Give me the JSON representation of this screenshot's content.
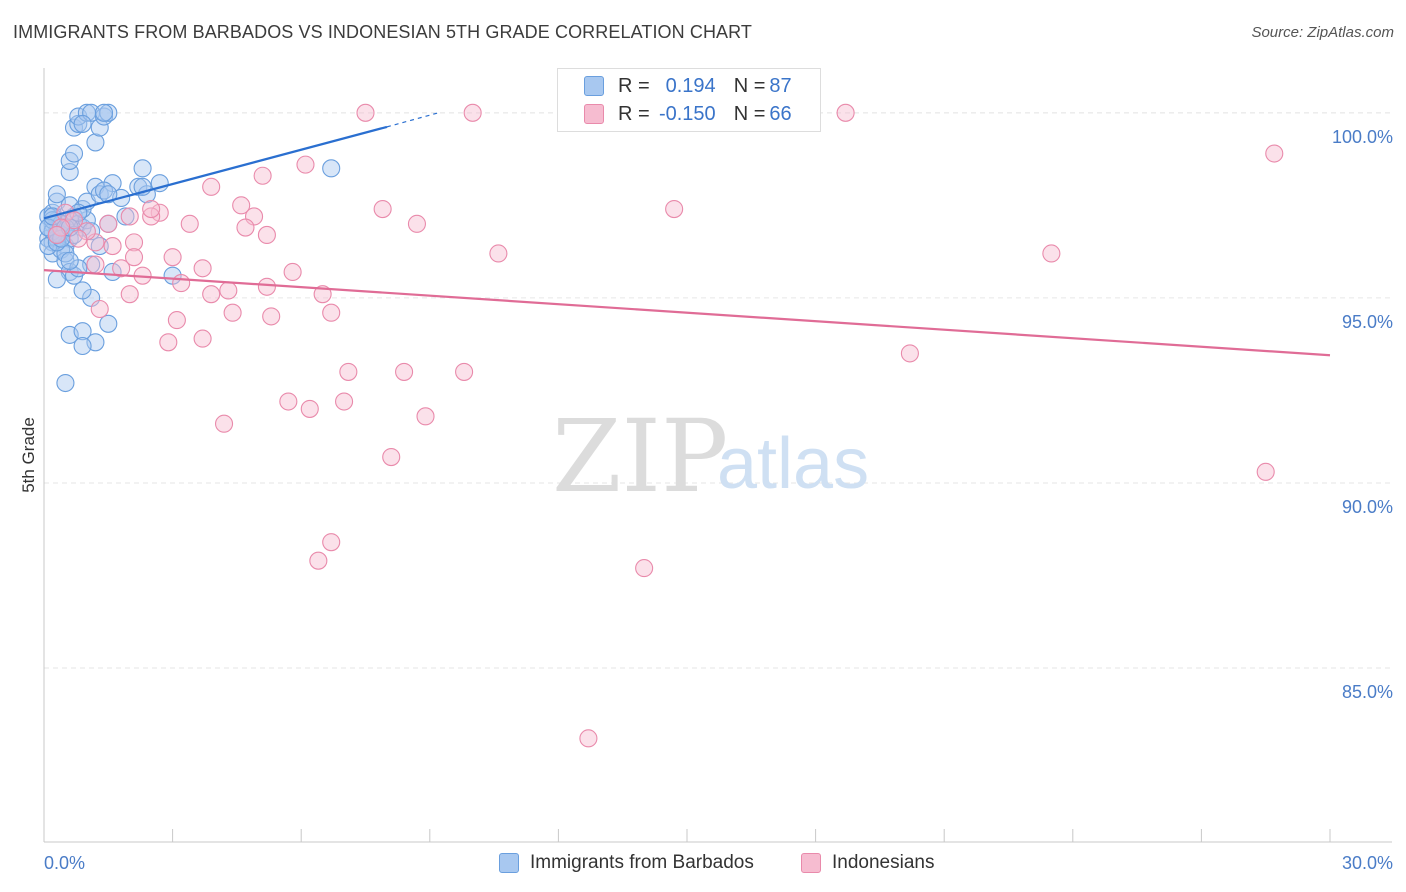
{
  "title": "IMMIGRANTS FROM BARBADOS VS INDONESIAN 5TH GRADE CORRELATION CHART",
  "source": "Source: ZipAtlas.com",
  "watermark": {
    "zip": "ZIP",
    "atlas": "atlas"
  },
  "legend": {
    "r_label": "R = ",
    "n_label": "N = ",
    "rows": [
      {
        "r": "0.194",
        "n": "87",
        "color": "#a8c8f0",
        "border": "#6a9fde"
      },
      {
        "r": "-0.150",
        "n": "66",
        "color": "#f6bcd0",
        "border": "#e98aab"
      }
    ]
  },
  "bottom_legend": [
    "Immigrants from Barbados",
    "Indonesians"
  ],
  "chart_data": {
    "type": "scatter",
    "title": "IMMIGRANTS FROM BARBADOS VS INDONESIAN 5TH GRADE CORRELATION CHART",
    "xlabel": "",
    "ylabel": "5th Grade",
    "xlim": [
      0,
      30
    ],
    "ylim": [
      80.3,
      100.9
    ],
    "x_tick_labels": [
      "0.0%",
      "30.0%"
    ],
    "y_ticks": [
      85,
      90,
      95,
      100
    ],
    "y_tick_labels": [
      "85.0%",
      "90.0%",
      "95.0%",
      "100.0%"
    ],
    "grid": true,
    "series": [
      {
        "name": "Immigrants from Barbados",
        "color": "#6a9fde",
        "fill": "#a8c8f0",
        "line_color": "#2a6fd0",
        "trend": {
          "x": [
            0,
            8.0
          ],
          "y": [
            97.15,
            99.62
          ],
          "dashed_to": [
            9.2,
            100.0
          ]
        },
        "points": [
          [
            0.1,
            97.2
          ],
          [
            0.2,
            97.0
          ],
          [
            0.1,
            96.6
          ],
          [
            0.3,
            96.8
          ],
          [
            0.2,
            96.5
          ],
          [
            0.4,
            96.8
          ],
          [
            0.3,
            97.1
          ],
          [
            0.1,
            96.9
          ],
          [
            0.5,
            97.0
          ],
          [
            0.4,
            96.7
          ],
          [
            0.2,
            97.3
          ],
          [
            0.6,
            97.1
          ],
          [
            0.3,
            96.6
          ],
          [
            0.5,
            96.4
          ],
          [
            0.2,
            96.2
          ],
          [
            0.7,
            97.2
          ],
          [
            0.8,
            97.0
          ],
          [
            0.9,
            96.9
          ],
          [
            1.0,
            97.1
          ],
          [
            0.6,
            96.6
          ],
          [
            0.4,
            96.3
          ],
          [
            0.3,
            97.6
          ],
          [
            0.3,
            97.8
          ],
          [
            0.6,
            97.5
          ],
          [
            0.9,
            97.4
          ],
          [
            1.0,
            97.6
          ],
          [
            1.2,
            98.0
          ],
          [
            1.3,
            97.8
          ],
          [
            1.6,
            98.1
          ],
          [
            1.4,
            97.9
          ],
          [
            2.2,
            98.0
          ],
          [
            2.4,
            97.8
          ],
          [
            2.7,
            98.1
          ],
          [
            2.3,
            98.5
          ],
          [
            0.6,
            98.4
          ],
          [
            0.6,
            98.7
          ],
          [
            0.7,
            98.9
          ],
          [
            1.2,
            99.2
          ],
          [
            0.7,
            99.6
          ],
          [
            0.8,
            99.7
          ],
          [
            1.3,
            99.6
          ],
          [
            0.8,
            99.9
          ],
          [
            1.0,
            100.0
          ],
          [
            1.1,
            100.0
          ],
          [
            1.4,
            99.9
          ],
          [
            1.5,
            100.0
          ],
          [
            1.4,
            100.0
          ],
          [
            0.9,
            99.7
          ],
          [
            1.9,
            97.2
          ],
          [
            1.5,
            97.0
          ],
          [
            1.1,
            96.8
          ],
          [
            0.5,
            96.0
          ],
          [
            0.6,
            95.7
          ],
          [
            0.7,
            95.6
          ],
          [
            0.3,
            95.5
          ],
          [
            1.1,
            95.9
          ],
          [
            0.8,
            95.8
          ],
          [
            1.3,
            96.4
          ],
          [
            1.6,
            95.7
          ],
          [
            3.0,
            95.6
          ],
          [
            0.5,
            96.2
          ],
          [
            0.6,
            96.0
          ],
          [
            1.1,
            95.0
          ],
          [
            0.9,
            95.2
          ],
          [
            0.6,
            94.0
          ],
          [
            0.9,
            94.1
          ],
          [
            1.2,
            93.8
          ],
          [
            1.5,
            94.3
          ],
          [
            0.9,
            93.7
          ],
          [
            0.5,
            92.7
          ],
          [
            6.7,
            98.5
          ],
          [
            2.3,
            98.0
          ],
          [
            1.8,
            97.7
          ],
          [
            1.5,
            97.8
          ],
          [
            0.2,
            96.8
          ],
          [
            0.4,
            97.0
          ],
          [
            0.1,
            96.4
          ],
          [
            0.3,
            96.5
          ],
          [
            0.2,
            97.1
          ],
          [
            0.5,
            96.9
          ],
          [
            0.7,
            96.7
          ],
          [
            0.4,
            96.6
          ],
          [
            0.1,
            96.9
          ],
          [
            0.3,
            96.7
          ],
          [
            0.2,
            97.2
          ],
          [
            0.6,
            96.9
          ],
          [
            0.8,
            97.3
          ]
        ]
      },
      {
        "name": "Indonesians",
        "color": "#e98aab",
        "fill": "#f6bcd0",
        "line_color": "#e06c96",
        "trend": {
          "x": [
            0,
            30.0
          ],
          "y": [
            95.75,
            93.45
          ]
        },
        "points": [
          [
            7.5,
            100.0
          ],
          [
            10.0,
            100.0
          ],
          [
            18.7,
            100.0
          ],
          [
            28.7,
            98.9
          ],
          [
            6.1,
            98.6
          ],
          [
            5.1,
            98.3
          ],
          [
            3.9,
            98.0
          ],
          [
            7.9,
            97.4
          ],
          [
            14.7,
            97.4
          ],
          [
            4.6,
            97.5
          ],
          [
            4.9,
            97.2
          ],
          [
            2.7,
            97.3
          ],
          [
            2.5,
            97.2
          ],
          [
            3.4,
            97.0
          ],
          [
            4.7,
            96.9
          ],
          [
            5.2,
            96.7
          ],
          [
            8.7,
            97.0
          ],
          [
            2.0,
            97.2
          ],
          [
            2.1,
            96.5
          ],
          [
            1.2,
            96.5
          ],
          [
            1.6,
            96.4
          ],
          [
            10.6,
            96.2
          ],
          [
            23.5,
            96.2
          ],
          [
            2.1,
            96.1
          ],
          [
            3.0,
            96.1
          ],
          [
            1.8,
            95.8
          ],
          [
            3.7,
            95.8
          ],
          [
            5.8,
            95.7
          ],
          [
            2.3,
            95.6
          ],
          [
            1.2,
            95.9
          ],
          [
            3.2,
            95.4
          ],
          [
            5.2,
            95.3
          ],
          [
            3.9,
            95.1
          ],
          [
            4.3,
            95.2
          ],
          [
            6.5,
            95.1
          ],
          [
            2.0,
            95.1
          ],
          [
            4.4,
            94.6
          ],
          [
            6.7,
            94.6
          ],
          [
            5.3,
            94.5
          ],
          [
            1.3,
            94.7
          ],
          [
            3.1,
            94.4
          ],
          [
            3.7,
            93.9
          ],
          [
            2.9,
            93.8
          ],
          [
            20.2,
            93.5
          ],
          [
            7.1,
            93.0
          ],
          [
            8.4,
            93.0
          ],
          [
            9.8,
            93.0
          ],
          [
            5.7,
            92.2
          ],
          [
            7.0,
            92.2
          ],
          [
            6.2,
            92.0
          ],
          [
            8.9,
            91.8
          ],
          [
            4.2,
            91.6
          ],
          [
            8.1,
            90.7
          ],
          [
            28.5,
            90.3
          ],
          [
            6.7,
            88.4
          ],
          [
            6.4,
            87.9
          ],
          [
            14.0,
            87.7
          ],
          [
            12.7,
            83.1
          ],
          [
            0.5,
            97.3
          ],
          [
            0.7,
            97.1
          ],
          [
            0.4,
            96.9
          ],
          [
            1.0,
            96.8
          ],
          [
            0.3,
            96.7
          ],
          [
            1.5,
            97.0
          ],
          [
            2.5,
            97.4
          ],
          [
            0.8,
            96.6
          ]
        ]
      }
    ]
  }
}
